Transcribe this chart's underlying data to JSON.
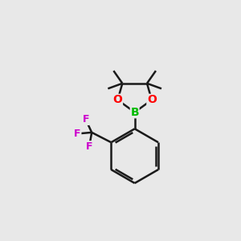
{
  "background_color": "#e8e8e8",
  "bond_color": "#1a1a1a",
  "boron_color": "#00bb00",
  "oxygen_color": "#ff0000",
  "fluorine_color": "#cc00cc",
  "line_width": 1.8,
  "figsize": [
    3.0,
    3.0
  ],
  "dpi": 100,
  "xlim": [
    0,
    10
  ],
  "ylim": [
    0,
    10
  ]
}
